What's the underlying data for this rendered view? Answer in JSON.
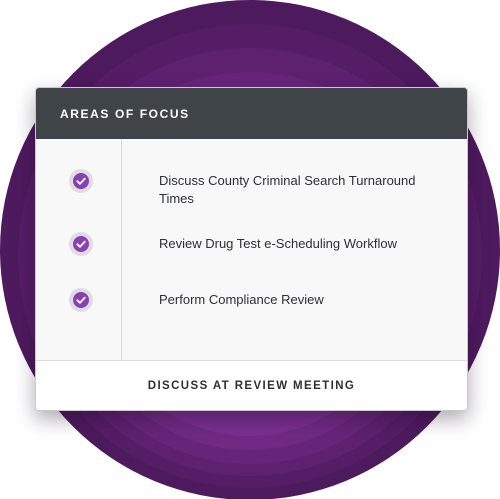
{
  "colors": {
    "header_bg": "#3f4449",
    "accent": "#8a3fb3",
    "circle_outer": "#4e1a5e",
    "circle_inner": "#7a3497"
  },
  "card": {
    "title": "AREAS OF FOCUS",
    "items": [
      {
        "icon": "check-circle-icon",
        "label": "Discuss County Criminal Search Turnaround Times",
        "checked": true
      },
      {
        "icon": "check-circle-icon",
        "label": "Review Drug Test e-Scheduling Workflow",
        "checked": true
      },
      {
        "icon": "check-circle-icon",
        "label": "Perform Compliance Review",
        "checked": true
      }
    ],
    "footer_button": "DISCUSS AT REVIEW MEETING"
  }
}
